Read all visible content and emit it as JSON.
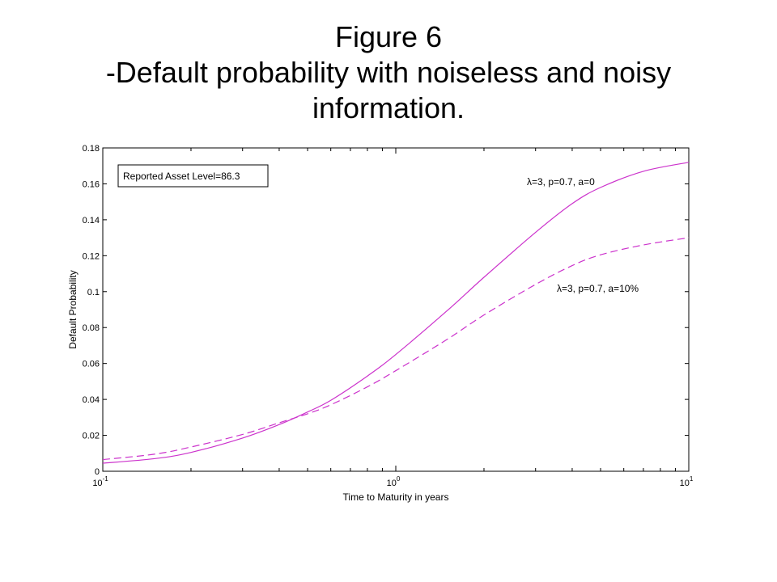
{
  "slide": {
    "title_line1": "Figure 6",
    "title_line2": "-Default probability with noiseless and noisy",
    "title_line3": "information."
  },
  "chart_data": {
    "type": "line",
    "xlabel": "Time to Maturity in years",
    "ylabel": "Default Probability",
    "x_scale": "log",
    "xlim": [
      0.1,
      10
    ],
    "ylim": [
      0,
      0.18
    ],
    "x_ticks": [
      0.1,
      1,
      10
    ],
    "x_tick_labels": [
      {
        "base": "10",
        "exp": "-1"
      },
      {
        "base": "10",
        "exp": "0"
      },
      {
        "base": "10",
        "exp": "1"
      }
    ],
    "y_ticks": [
      0,
      0.02,
      0.04,
      0.06,
      0.08,
      0.1,
      0.12,
      0.14,
      0.16,
      0.18
    ],
    "y_tick_labels": [
      "0",
      "0.02",
      "0.04",
      "0.06",
      "0.08",
      "0.1",
      "0.12",
      "0.14",
      "0.16",
      "0.18"
    ],
    "grid": false,
    "line_color": "#cc33cc",
    "annotation_box": "Reported Asset Level=86.3",
    "series": [
      {
        "name": "λ=3, p=0.7, a=0",
        "style": "solid",
        "x": [
          0.1,
          0.15,
          0.2,
          0.3,
          0.4,
          0.5,
          0.6,
          0.8,
          1.0,
          1.5,
          2.0,
          3.0,
          4.0,
          5.0,
          7.0,
          10.0
        ],
        "y": [
          0.0045,
          0.007,
          0.0105,
          0.0185,
          0.026,
          0.033,
          0.0395,
          0.053,
          0.065,
          0.0895,
          0.108,
          0.133,
          0.149,
          0.158,
          0.167,
          0.172
        ]
      },
      {
        "name": "λ=3, p=0.7, a=10%",
        "style": "dashed",
        "x": [
          0.1,
          0.15,
          0.2,
          0.3,
          0.4,
          0.5,
          0.6,
          0.8,
          1.0,
          1.5,
          2.0,
          3.0,
          4.0,
          5.0,
          7.0,
          10.0
        ],
        "y": [
          0.0065,
          0.0095,
          0.0135,
          0.0205,
          0.027,
          0.032,
          0.037,
          0.047,
          0.056,
          0.0735,
          0.087,
          0.104,
          0.1145,
          0.1205,
          0.126,
          0.13
        ]
      }
    ]
  }
}
